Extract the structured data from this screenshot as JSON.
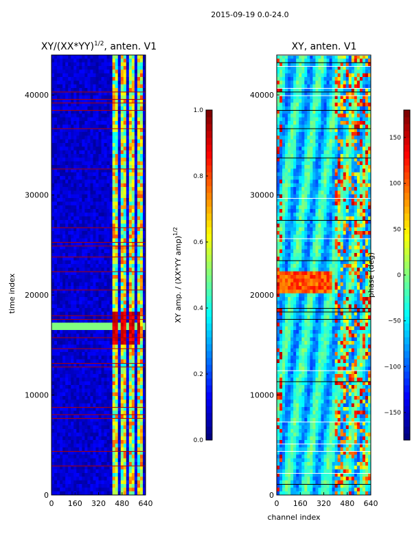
{
  "figure_title": "2015-09-19 0.0-24.0",
  "chart_data": [
    {
      "type": "heatmap",
      "title_prefix": "XY/(XX*YY)",
      "title_exponent": "1/2",
      "title_suffix": ", anten. V1",
      "xlabel": "",
      "ylabel": "time index",
      "xlim": [
        0,
        640
      ],
      "ylim": [
        0,
        44000
      ],
      "xticks": [
        0,
        160,
        320,
        480,
        640
      ],
      "yticks": [
        0,
        10000,
        20000,
        30000,
        40000
      ],
      "colormap": "jet",
      "colorbar": {
        "label_prefix": "XY amp. / (XX*YY amp)",
        "label_exponent": "1/2",
        "range": [
          0.0,
          1.0
        ],
        "ticks": [
          0.0,
          0.2,
          0.4,
          0.6,
          0.8,
          1.0
        ],
        "tick_labels": [
          "0.0",
          "0.2",
          "0.4",
          "0.6",
          "0.8",
          "1.0"
        ]
      }
    },
    {
      "type": "heatmap",
      "title": "XY, anten. V1",
      "xlabel": "channel index",
      "ylabel": "",
      "xlim": [
        0,
        640
      ],
      "ylim": [
        0,
        44000
      ],
      "xticks": [
        0,
        160,
        320,
        480,
        640
      ],
      "yticks": [
        0,
        10000,
        20000,
        30000,
        40000
      ],
      "colormap": "jet",
      "colorbar": {
        "label": "phase (deg)",
        "range": [
          -180,
          180
        ],
        "ticks": [
          -150,
          -100,
          -50,
          0,
          50,
          100,
          150
        ],
        "tick_labels": [
          "−150",
          "−100",
          "−50",
          "0",
          "50",
          "100",
          "150"
        ]
      }
    }
  ]
}
